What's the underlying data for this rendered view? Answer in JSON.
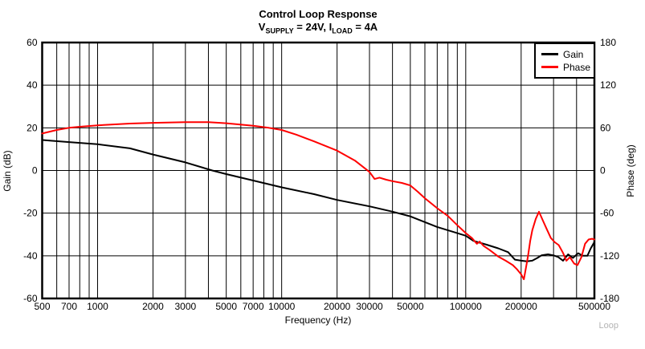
{
  "title": "Control Loop Response",
  "subtitle": {
    "v": "V",
    "v_sub": "SUPPLY",
    "mid": " = 24V, I",
    "i_sub": "LOAD",
    "end": " = 4A"
  },
  "watermark": "Loop",
  "legend": {
    "items": [
      {
        "label": "Gain",
        "color": "#000000"
      },
      {
        "label": "Phase",
        "color": "#ff0000"
      }
    ]
  },
  "chart_data": {
    "type": "line",
    "title": "Control Loop Response",
    "subtitle": "VSUPPLY = 24V, ILOAD = 4A",
    "xlabel": "Frequency (Hz)",
    "ylabel_left": "Gain (dB)",
    "ylabel_right": "Phase (deg)",
    "x_scale": "log",
    "x_range": [
      500,
      500000
    ],
    "y_left_range": [
      -60,
      60
    ],
    "y_left_step": 20,
    "y_right_range": [
      -180,
      180
    ],
    "y_right_step": 60,
    "grid": true,
    "grid_color": "#000000",
    "legend_position": "top-right",
    "x_ticks": [
      {
        "f": 500,
        "label": "500"
      },
      {
        "f": 700,
        "label": "700"
      },
      {
        "f": 1000,
        "label": "1000"
      },
      {
        "f": 2000,
        "label": "2000"
      },
      {
        "f": 3000,
        "label": "3000"
      },
      {
        "f": 5000,
        "label": "5000"
      },
      {
        "f": 7000,
        "label": "7000"
      },
      {
        "f": 10000,
        "label": "10000"
      },
      {
        "f": 20000,
        "label": "20000"
      },
      {
        "f": 30000,
        "label": "30000"
      },
      {
        "f": 50000,
        "label": "50000"
      },
      {
        "f": 100000,
        "label": "100000"
      },
      {
        "f": 200000,
        "label": "200000"
      },
      {
        "f": 500000,
        "label": "500000"
      }
    ],
    "series": [
      {
        "name": "Gain",
        "axis": "left",
        "unit": "dB",
        "color": "#000000",
        "points": [
          [
            500,
            14.3
          ],
          [
            700,
            13.3
          ],
          [
            1000,
            12.3
          ],
          [
            1500,
            10.4
          ],
          [
            2000,
            7.5
          ],
          [
            3000,
            3.8
          ],
          [
            4200,
            0
          ],
          [
            5000,
            -1.7
          ],
          [
            7000,
            -4.7
          ],
          [
            10000,
            -7.9
          ],
          [
            15000,
            -11.1
          ],
          [
            20000,
            -13.8
          ],
          [
            30000,
            -16.8
          ],
          [
            40000,
            -19.3
          ],
          [
            50000,
            -21.5
          ],
          [
            70000,
            -26.5
          ],
          [
            85000,
            -28.7
          ],
          [
            100000,
            -30.6
          ],
          [
            110000,
            -33
          ],
          [
            130000,
            -34.8
          ],
          [
            150000,
            -36.5
          ],
          [
            170000,
            -38.3
          ],
          [
            185000,
            -41.8
          ],
          [
            200000,
            -42.3
          ],
          [
            215000,
            -42.6
          ],
          [
            230000,
            -42.3
          ],
          [
            245000,
            -41
          ],
          [
            258000,
            -39.8
          ],
          [
            280000,
            -39.3
          ],
          [
            300000,
            -39.8
          ],
          [
            318000,
            -40.6
          ],
          [
            338000,
            -42.3
          ],
          [
            360000,
            -39.3
          ],
          [
            382000,
            -41
          ],
          [
            408000,
            -38.8
          ],
          [
            432000,
            -40
          ],
          [
            458000,
            -40
          ],
          [
            478000,
            -36.5
          ],
          [
            500000,
            -33.5
          ]
        ]
      },
      {
        "name": "Phase",
        "axis": "right",
        "unit": "deg",
        "color": "#ff0000",
        "points": [
          [
            500,
            52
          ],
          [
            600,
            57
          ],
          [
            700,
            60
          ],
          [
            800,
            61.5
          ],
          [
            1000,
            63.5
          ],
          [
            1500,
            66
          ],
          [
            2000,
            67
          ],
          [
            3000,
            68
          ],
          [
            4000,
            68
          ],
          [
            5000,
            66.5
          ],
          [
            7000,
            63
          ],
          [
            8500,
            60
          ],
          [
            10000,
            57
          ],
          [
            12000,
            50.5
          ],
          [
            15000,
            41
          ],
          [
            20000,
            28
          ],
          [
            25000,
            14
          ],
          [
            30000,
            -2
          ],
          [
            32000,
            -12
          ],
          [
            34000,
            -10
          ],
          [
            37000,
            -13
          ],
          [
            40000,
            -15
          ],
          [
            45000,
            -17.5
          ],
          [
            50000,
            -21
          ],
          [
            55000,
            -30
          ],
          [
            60000,
            -39
          ],
          [
            70000,
            -53
          ],
          [
            80000,
            -64
          ],
          [
            90000,
            -77
          ],
          [
            100000,
            -88
          ],
          [
            108000,
            -95
          ],
          [
            115000,
            -103
          ],
          [
            119000,
            -100
          ],
          [
            125000,
            -106
          ],
          [
            135000,
            -112
          ],
          [
            150000,
            -121
          ],
          [
            165000,
            -127
          ],
          [
            180000,
            -133
          ],
          [
            190000,
            -139
          ],
          [
            200000,
            -146
          ],
          [
            207000,
            -153
          ],
          [
            213000,
            -135
          ],
          [
            218000,
            -120
          ],
          [
            224000,
            -99
          ],
          [
            230000,
            -84
          ],
          [
            240000,
            -68
          ],
          [
            250000,
            -58
          ],
          [
            262000,
            -70
          ],
          [
            275000,
            -82
          ],
          [
            290000,
            -95
          ],
          [
            305000,
            -101
          ],
          [
            320000,
            -105
          ],
          [
            338000,
            -116
          ],
          [
            352000,
            -127
          ],
          [
            368000,
            -122
          ],
          [
            388000,
            -131
          ],
          [
            405000,
            -133
          ],
          [
            425000,
            -122
          ],
          [
            445000,
            -103
          ],
          [
            465000,
            -97
          ],
          [
            485000,
            -96
          ],
          [
            500000,
            -97
          ]
        ]
      }
    ]
  }
}
